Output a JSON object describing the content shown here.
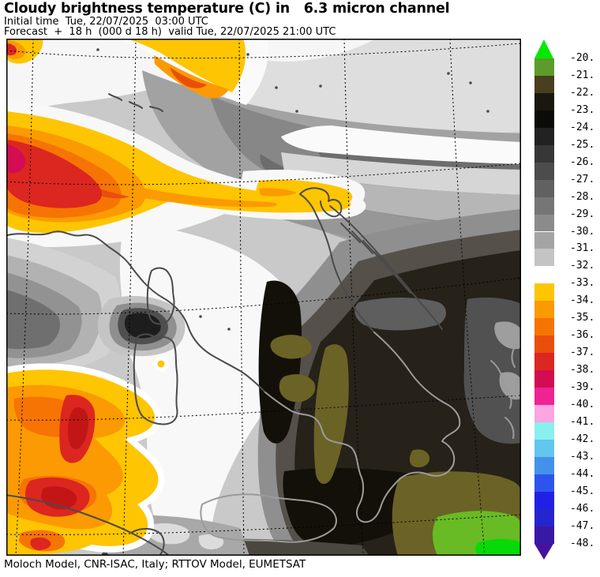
{
  "header": {
    "title": "Cloudy brightness temperature (C) in   6.3 micron channel",
    "initial_time_line": "Initial time  Tue, 22/07/2025  03:00 UTC",
    "forecast_line": "Forecast  +  18 h  (000 d 18 h)  valid Tue, 22/07/2025 21:00 UTC"
  },
  "footer": {
    "credit": "Moloch Model, CNR-ISAC, Italy; RTTOV Model, EUMETSAT"
  },
  "colorbar": {
    "arrow_top_color": "#00e903",
    "arrow_bottom_color": "#45129b",
    "tick_labels": [
      "-20.",
      "-21.",
      "-22.",
      "-23.",
      "-24.",
      "-25.",
      "-26.",
      "-27.",
      "-28.",
      "-29.",
      "-30.",
      "-31.",
      "-32.",
      "-33.",
      "-34.",
      "-35.",
      "-36.",
      "-37.",
      "-38.",
      "-39.",
      "-40.",
      "-41.",
      "-42.",
      "-43.",
      "-44.",
      "-45.",
      "-46.",
      "-47.",
      "-48."
    ],
    "segment_colors": [
      "#5d9b2a",
      "#493f1e",
      "#1c170e",
      "#0b0b09",
      "#222222",
      "#373737",
      "#4c4c4c",
      "#616161",
      "#767676",
      "#8b8b8b",
      "#a4a4a4",
      "#c4c4c4",
      "#ffffff",
      "#fec502",
      "#fb9a02",
      "#f67403",
      "#ea4e0c",
      "#dc2620",
      "#d30c53",
      "#ee2394",
      "#fca5e3",
      "#8af0ef",
      "#62c6ee",
      "#4392ea",
      "#2e54ee",
      "#2121e6",
      "#2525cd",
      "#3a18a6"
    ]
  },
  "chart_data": {
    "type": "heatmap",
    "title": "Cloudy brightness temperature (C) in 6.3 micron channel",
    "legend_position": "right",
    "legend_values": [
      -20,
      -21,
      -22,
      -23,
      -24,
      -25,
      -26,
      -27,
      -28,
      -29,
      -30,
      -31,
      -32,
      -33,
      -34,
      -35,
      -36,
      -37,
      -38,
      -39,
      -40,
      -41,
      -42,
      -43,
      -44,
      -45,
      -46,
      -47,
      -48
    ],
    "legend_colors_between_values": [
      "#5d9b2a",
      "#493f1e",
      "#1c170e",
      "#0b0b09",
      "#222222",
      "#373737",
      "#4c4c4c",
      "#616161",
      "#767676",
      "#8b8b8b",
      "#a4a4a4",
      "#c4c4c4",
      "#ffffff",
      "#fec502",
      "#fb9a02",
      "#f67403",
      "#ea4e0c",
      "#dc2620",
      "#d30c53",
      "#ee2394",
      "#fca5e3",
      "#8af0ef",
      "#62c6ee",
      "#4392ea",
      "#2e54ee",
      "#2121e6",
      "#2525cd",
      "#3a18a6"
    ],
    "above_range_color": "#00e903",
    "below_range_color": "#45129b",
    "grid": true
  }
}
